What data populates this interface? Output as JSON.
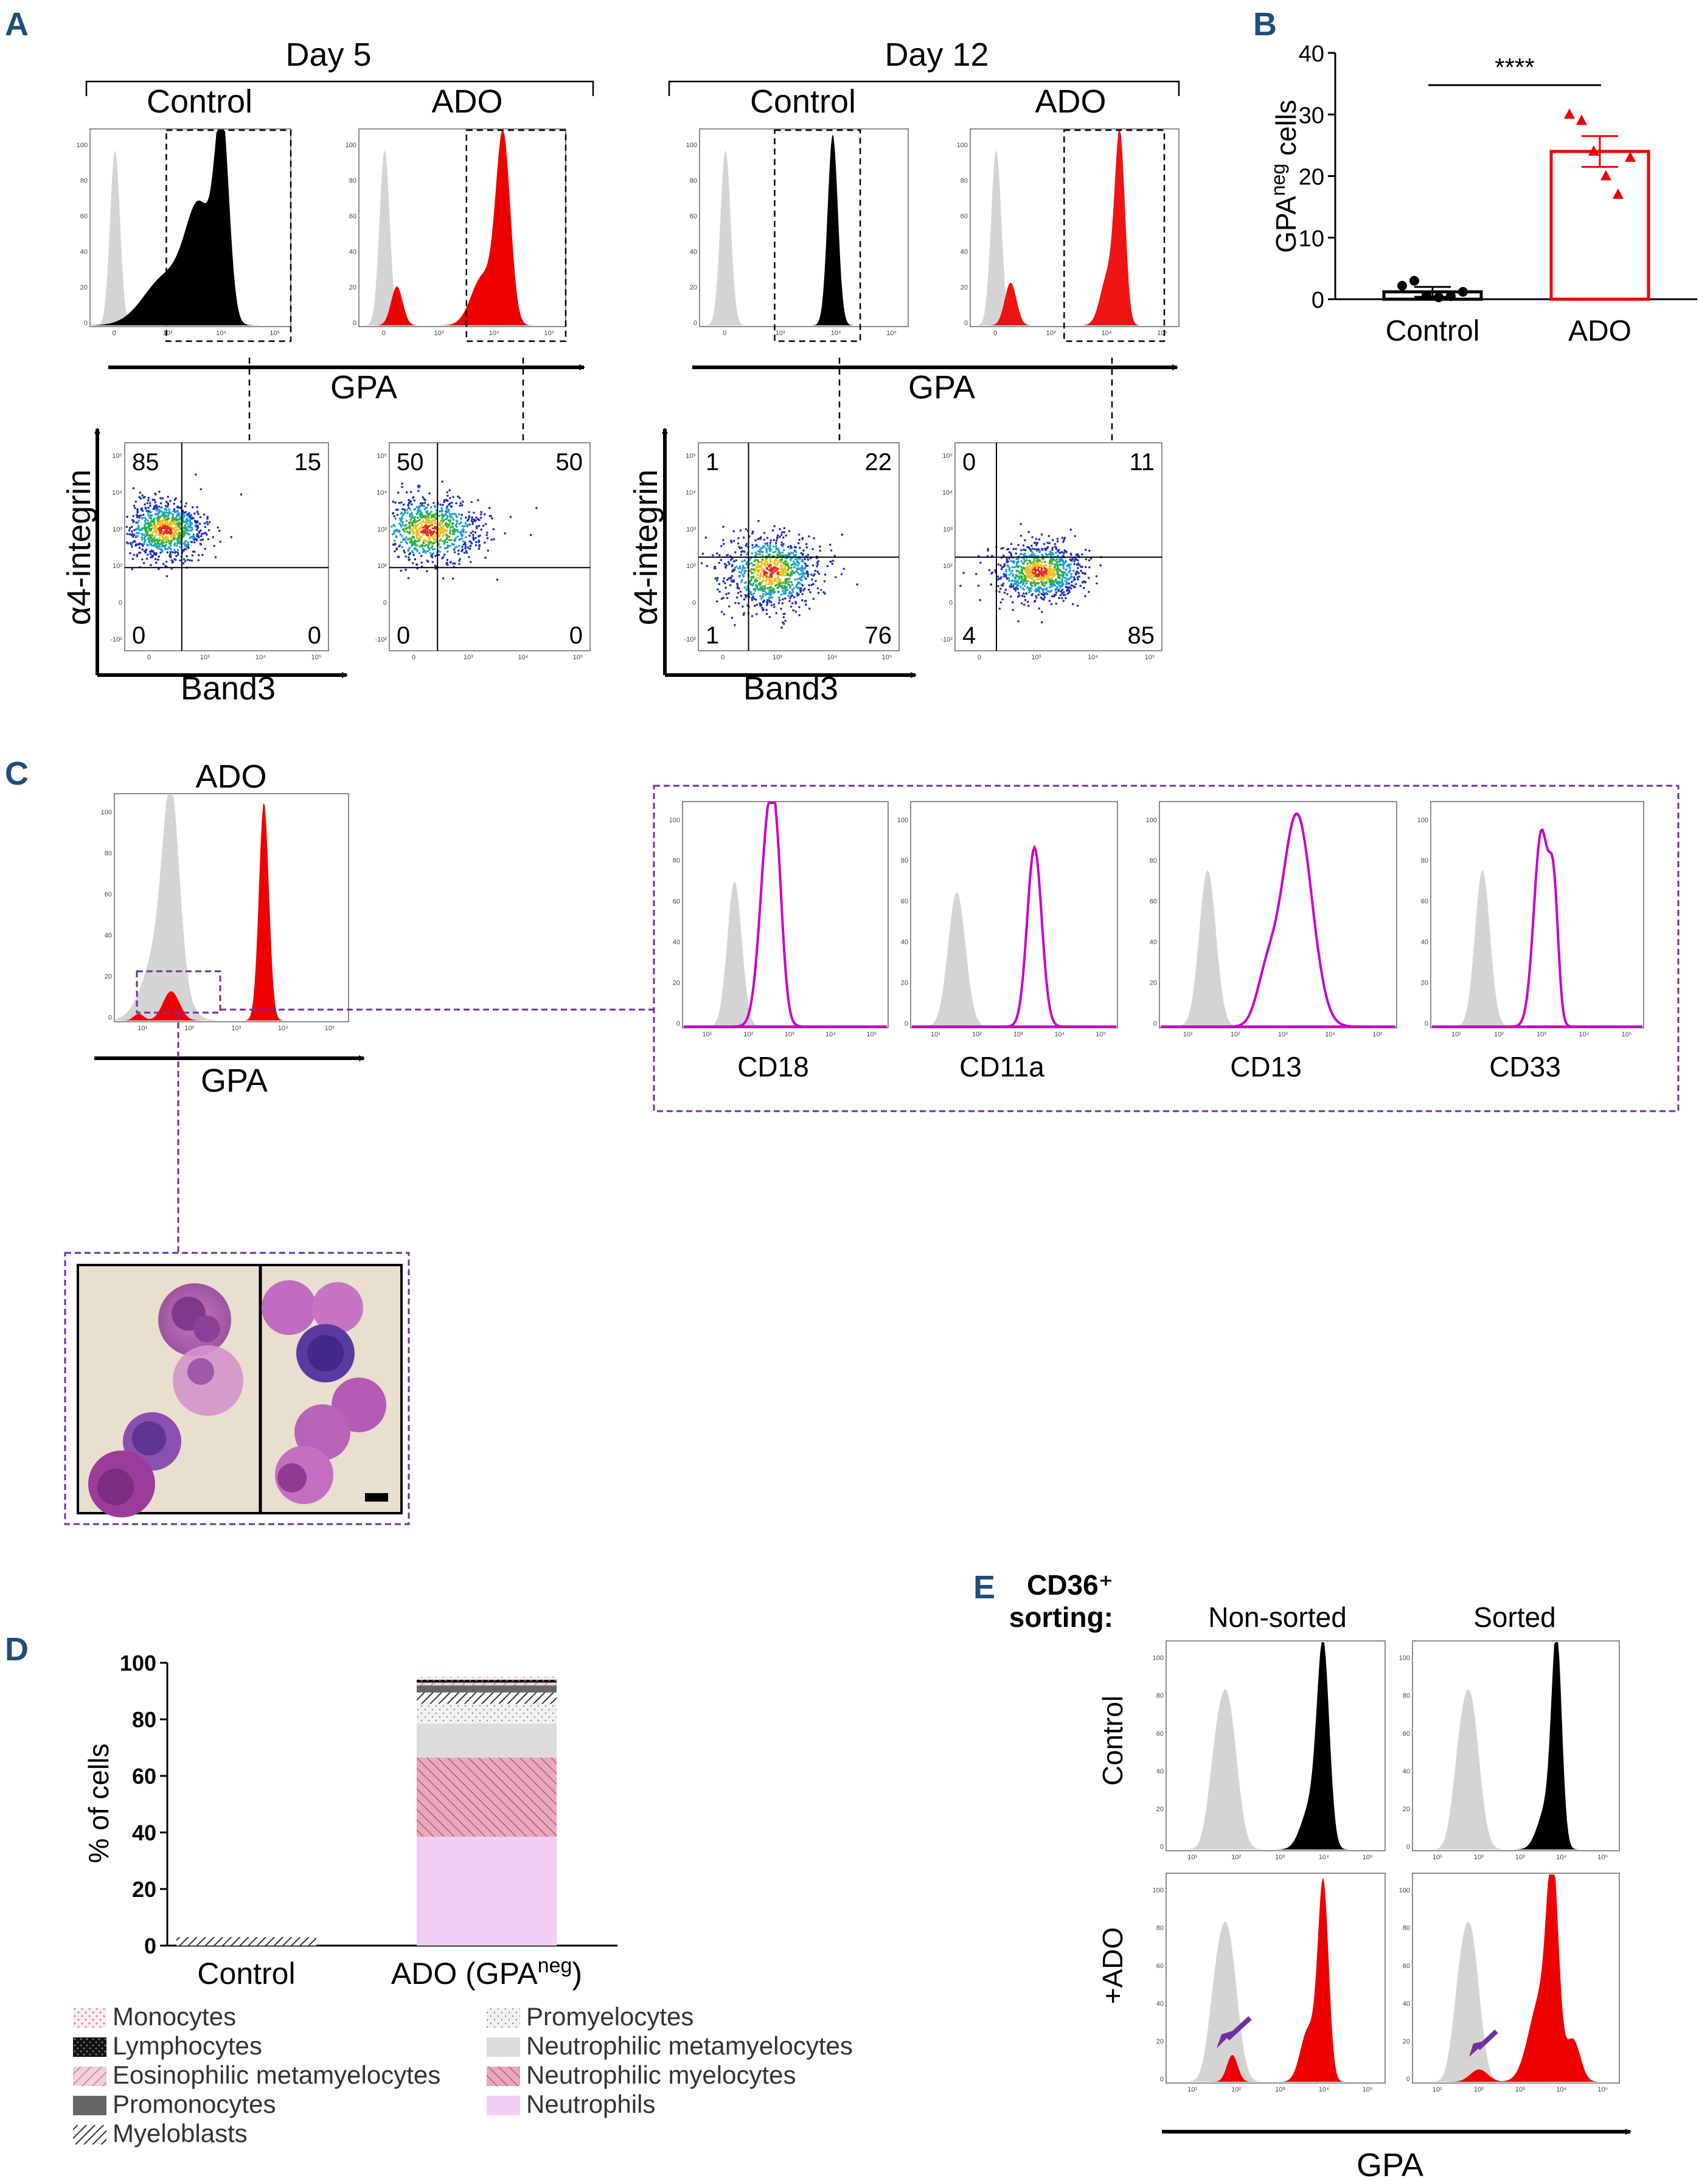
{
  "panels": {
    "a": "A",
    "b": "B",
    "c": "C",
    "d": "D",
    "e": "E"
  },
  "colors": {
    "gray": "#d4d4d4",
    "black": "#000000",
    "red": "#ee0000",
    "magenta": "#c800c8",
    "purple": "#7030a0",
    "letter": "#1f4e79"
  },
  "panel_a": {
    "day5": "Day 5",
    "day12": "Day 12",
    "control": "Control",
    "ado": "ADO",
    "x_hist": "GPA",
    "y_dot": "α4-integrin",
    "x_dot": "Band3",
    "hist_yticks": [
      "100",
      "80",
      "60",
      "40",
      "20",
      "0"
    ],
    "hist_xticks": [
      "0",
      "10³",
      "10⁴",
      "10⁵"
    ],
    "dot_yticks": [
      "10⁵",
      "10⁴",
      "10³",
      "10²",
      "0",
      "-10²"
    ],
    "dot_xticks": [
      "0",
      "10³",
      "10⁴",
      "10⁵"
    ],
    "quadrants": [
      {
        "tl": "85",
        "tr": "15",
        "bl": "0",
        "br": "0"
      },
      {
        "tl": "50",
        "tr": "50",
        "bl": "0",
        "br": "0"
      },
      {
        "tl": "1",
        "tr": "22",
        "bl": "1",
        "br": "76"
      },
      {
        "tl": "0",
        "tr": "11",
        "bl": "4",
        "br": "85"
      }
    ]
  },
  "chart_data": [
    {
      "type": "bar",
      "panel": "B",
      "categories": [
        "Control",
        "ADO"
      ],
      "values": [
        1.2,
        24
      ],
      "sem": [
        0.8,
        2.5
      ],
      "points": {
        "Control": [
          2.2,
          3.0,
          0.6,
          0.3,
          0.5,
          1.2
        ],
        "ADO": [
          30,
          29,
          24,
          20,
          17,
          23
        ]
      },
      "ylabel_main": "GPA",
      "ylabel_sup": "neg",
      "ylabel_rest": " cells",
      "yticks": [
        "0",
        "10",
        "20",
        "30",
        "40"
      ],
      "ylim": [
        0,
        40
      ],
      "significance": "****"
    },
    {
      "type": "bar",
      "panel": "D",
      "stacked": true,
      "categories": [
        "Control",
        "ADO (GPA"
      ],
      "category_sup": "neg",
      "category_close": ")",
      "ylabel": "% of cells",
      "yticks": [
        "0",
        "20",
        "40",
        "60",
        "80",
        "100"
      ],
      "ylim": [
        0,
        100
      ],
      "series": [
        {
          "name": "Neutrophils",
          "values": [
            0,
            38.5
          ]
        },
        {
          "name": "Neutrophilic myelocytes",
          "values": [
            0,
            28
          ]
        },
        {
          "name": "Neutrophilic metamyelocytes",
          "values": [
            0,
            12
          ]
        },
        {
          "name": "Promyelocytes",
          "values": [
            0,
            7
          ]
        },
        {
          "name": "Myeloblasts",
          "values": [
            3,
            4
          ]
        },
        {
          "name": "Promonocytes",
          "values": [
            0,
            2.5
          ]
        },
        {
          "name": "Eosinophilic metamyelocytes",
          "values": [
            0,
            1
          ]
        },
        {
          "name": "Lymphocytes",
          "values": [
            0,
            1
          ]
        },
        {
          "name": "Monocytes",
          "values": [
            0,
            1
          ]
        }
      ],
      "legend_left": [
        "Monocytes",
        "Lymphocytes",
        "Eosinophilic metamyelocytes",
        "Promonocytes",
        "Myeloblasts"
      ],
      "legend_right": [
        "Promyelocytes",
        "Neutrophilic metamyelocytes",
        "Neutrophilic myelocytes",
        "Neutrophils"
      ]
    }
  ],
  "panel_c": {
    "title": "ADO",
    "xlabel": "GPA",
    "markers": [
      "CD18",
      "CD11a",
      "CD13",
      "CD33"
    ],
    "hist_yticks": [
      "100",
      "80",
      "60",
      "40",
      "20",
      "0"
    ],
    "hist_xticks": [
      "10¹",
      "10²",
      "10³",
      "10⁴",
      "10⁵"
    ]
  },
  "panel_e": {
    "title_line1": "CD36⁺",
    "title_line2": "sorting:",
    "col1": "Non-sorted",
    "col2": "Sorted",
    "row1": "Control",
    "row2": "+ADO",
    "xlabel": "GPA",
    "hist_yticks": [
      "100",
      "80",
      "60",
      "40",
      "20",
      "0"
    ],
    "hist_xticks": [
      "10¹",
      "10²",
      "10³",
      "10⁴",
      "10⁵"
    ]
  }
}
